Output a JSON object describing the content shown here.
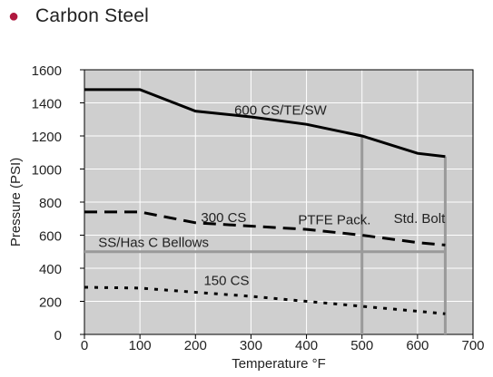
{
  "header": {
    "bullet_label": "Carbon Steel",
    "bullet_color": "#b0183f"
  },
  "chart_data": {
    "type": "line",
    "title": "",
    "xlabel": "Temperature °F",
    "ylabel": "Pressure (PSI)",
    "xlim": [
      0,
      700
    ],
    "ylim": [
      0,
      1600
    ],
    "xticks": [
      0,
      100,
      200,
      300,
      400,
      500,
      600,
      700
    ],
    "yticks": [
      0,
      200,
      400,
      600,
      800,
      1000,
      1200,
      1400,
      1600
    ],
    "grid": true,
    "plot_background": "#cfcfcf",
    "series": [
      {
        "name": "600 CS/TE/SW",
        "style": "solid",
        "color": "#000000",
        "x": [
          0,
          100,
          200,
          300,
          400,
          500,
          600,
          650
        ],
        "y": [
          1480,
          1480,
          1350,
          1315,
          1270,
          1200,
          1095,
          1075
        ]
      },
      {
        "name": "300 CS",
        "style": "dashed",
        "color": "#000000",
        "x": [
          0,
          100,
          200,
          300,
          400,
          500,
          600,
          650
        ],
        "y": [
          740,
          740,
          675,
          655,
          635,
          600,
          555,
          540
        ]
      },
      {
        "name": "150 CS",
        "style": "dotted",
        "color": "#000000",
        "x": [
          0,
          100,
          200,
          300,
          400,
          500,
          600,
          650
        ],
        "y": [
          285,
          280,
          255,
          230,
          200,
          170,
          140,
          125
        ]
      },
      {
        "name": "SS/Has C Bellows",
        "style": "solid-gray",
        "color": "#9a9a9a",
        "x": [
          0,
          650
        ],
        "y": [
          500,
          500
        ]
      },
      {
        "name": "PTFE Pack.",
        "style": "solid-gray",
        "color": "#9a9a9a",
        "x": [
          500,
          500
        ],
        "y": [
          1200,
          0
        ]
      },
      {
        "name": "Std. Bolt",
        "style": "solid-gray",
        "color": "#9a9a9a",
        "x": [
          650,
          650
        ],
        "y": [
          1075,
          0
        ]
      }
    ],
    "annotations": [
      {
        "text": "600 CS/TE/SW",
        "x": 270,
        "y": 1330
      },
      {
        "text": "300 CS",
        "x": 210,
        "y": 680
      },
      {
        "text": "PTFE Pack.",
        "x": 385,
        "y": 665
      },
      {
        "text": "Std. Bolt",
        "x": 557,
        "y": 675
      },
      {
        "text": "SS/Has C Bellows",
        "x": 25,
        "y": 530
      },
      {
        "text": "150 CS",
        "x": 215,
        "y": 300
      }
    ]
  }
}
